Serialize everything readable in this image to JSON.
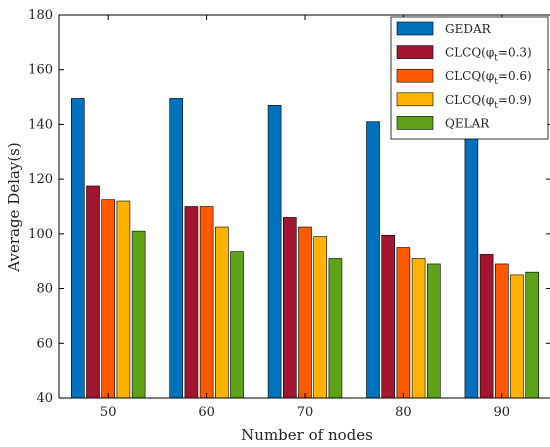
{
  "chart_data": {
    "type": "bar",
    "xlabel": "Number of nodes",
    "ylabel": "Average Delay(s)",
    "categories": [
      "50",
      "60",
      "70",
      "80",
      "90"
    ],
    "ylim": [
      40,
      180
    ],
    "yticks": [
      40,
      60,
      80,
      100,
      120,
      140,
      160,
      180
    ],
    "grid": false,
    "legend_position": "top-right",
    "series": [
      {
        "name": "GEDAR",
        "name_parts": [
          "GEDAR",
          "",
          ""
        ],
        "color": "#0072BD",
        "values": [
          149.5,
          149.5,
          147,
          141,
          135.5
        ]
      },
      {
        "name": "CLCQ(φt=0.3)",
        "name_parts": [
          "CLCQ(φ",
          "t",
          "=0.3)"
        ],
        "color": "#A2142F",
        "values": [
          117.5,
          110,
          106,
          99.5,
          92.5
        ]
      },
      {
        "name": "CLCQ(φt=0.6)",
        "name_parts": [
          "CLCQ(φ",
          "t",
          "=0.6)"
        ],
        "color": "#FF5A00",
        "values": [
          112.5,
          110,
          102.5,
          95,
          89
        ]
      },
      {
        "name": "CLCQ(φt=0.9)",
        "name_parts": [
          "CLCQ(φ",
          "t",
          "=0.9)"
        ],
        "color": "#FFB300",
        "values": [
          112,
          102.5,
          99,
          91,
          85
        ]
      },
      {
        "name": "QELAR",
        "name_parts": [
          "QELAR",
          "",
          ""
        ],
        "color": "#5DA218",
        "values": [
          101,
          93.5,
          91,
          89,
          86
        ]
      }
    ]
  }
}
